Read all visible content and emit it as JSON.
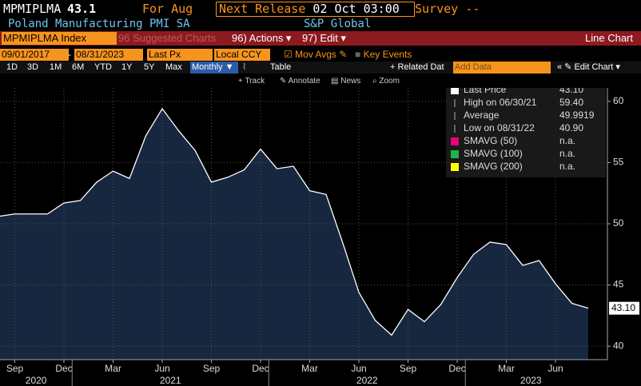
{
  "header": {
    "ticker": "MPMIPLMA",
    "last": "43.1",
    "period": "For Aug",
    "next_release_label": "Next Release",
    "next_release": "02 Oct 03:00",
    "survey_label": "Survey",
    "survey": "--",
    "name": "Poland Manufacturing PMI SA",
    "source": "S&P Global"
  },
  "menu": {
    "security": "MPMIPLMA Index",
    "suggested": "96 Suggested Charts",
    "actions": "96) Actions ▾",
    "edit": "97) Edit ▾",
    "chart_type": "Line Chart"
  },
  "settings": {
    "start": "09/01/2017",
    "sep": "-",
    "end": "08/31/2023",
    "price": "Last Px",
    "currency": "Local CCY",
    "mov_avgs": "Mov Avgs",
    "key_events": "Key Events"
  },
  "ranges": {
    "buttons": [
      "1D",
      "3D",
      "1M",
      "6M",
      "YTD",
      "1Y",
      "5Y",
      "Max"
    ],
    "frequency": "Monthly ▼",
    "table": "Table",
    "related": "+ Related Dat",
    "add_data": "Add Data",
    "edit_chart": "« ✎ Edit Chart ▾"
  },
  "tools": [
    "+ Track",
    "✎ Annotate",
    "▤ News",
    "⌕ Zoom"
  ],
  "chart_data": {
    "type": "area",
    "color": "#ffffff",
    "fill": "#17273f",
    "x": [
      "2020-08",
      "2020-09",
      "2020-10",
      "2020-11",
      "2020-12",
      "2021-01",
      "2021-02",
      "2021-03",
      "2021-04",
      "2021-05",
      "2021-06",
      "2021-07",
      "2021-08",
      "2021-09",
      "2021-10",
      "2021-11",
      "2021-12",
      "2022-01",
      "2022-02",
      "2022-03",
      "2022-04",
      "2022-05",
      "2022-06",
      "2022-07",
      "2022-08",
      "2022-09",
      "2022-10",
      "2022-11",
      "2022-12",
      "2023-01",
      "2023-02",
      "2023-03",
      "2023-04",
      "2023-05",
      "2023-06",
      "2023-07",
      "2023-08"
    ],
    "values": [
      50.6,
      50.8,
      50.8,
      50.8,
      51.7,
      51.9,
      53.4,
      54.3,
      53.7,
      57.2,
      59.4,
      57.6,
      56.0,
      53.4,
      53.8,
      54.4,
      56.1,
      54.5,
      54.7,
      52.7,
      52.4,
      48.5,
      44.4,
      42.1,
      40.9,
      43.0,
      42.0,
      43.4,
      45.6,
      47.5,
      48.5,
      48.3,
      46.6,
      47.0,
      45.1,
      43.5,
      43.1
    ],
    "last_value_label": "43.10",
    "ylim": [
      38.9,
      61.1
    ],
    "yticks": [
      40,
      45,
      50,
      55,
      60
    ],
    "grid": true,
    "xticks": [
      {
        "value": "2020-09",
        "label": "Sep"
      },
      {
        "value": "2020-12",
        "label": "Dec"
      },
      {
        "value": "2021-03",
        "label": "Mar"
      },
      {
        "value": "2021-06",
        "label": "Jun"
      },
      {
        "value": "2021-09",
        "label": "Sep"
      },
      {
        "value": "2021-12",
        "label": "Dec"
      },
      {
        "value": "2022-03",
        "label": "Mar"
      },
      {
        "value": "2022-06",
        "label": "Jun"
      },
      {
        "value": "2022-09",
        "label": "Sep"
      },
      {
        "value": "2022-12",
        "label": "Dec"
      },
      {
        "value": "2023-03",
        "label": "Mar"
      },
      {
        "value": "2023-06",
        "label": "Jun"
      }
    ],
    "year_labels": [
      "2020",
      "2021",
      "2022",
      "2023"
    ],
    "legend": [
      {
        "name": "Last Price",
        "value": "43.10",
        "color": "#ffffff"
      },
      {
        "name": "High on 06/30/21",
        "value": "59.40",
        "color": null
      },
      {
        "name": "Average",
        "value": "49.9919",
        "color": null
      },
      {
        "name": "Low on 08/31/22",
        "value": "40.90",
        "color": null
      },
      {
        "name": "SMAVG (50)",
        "value": "n.a.",
        "color": "#e6007e"
      },
      {
        "name": "SMAVG (100)",
        "value": "n.a.",
        "color": "#22b14c"
      },
      {
        "name": "SMAVG (200)",
        "value": "n.a.",
        "color": "#ffff00"
      }
    ]
  }
}
